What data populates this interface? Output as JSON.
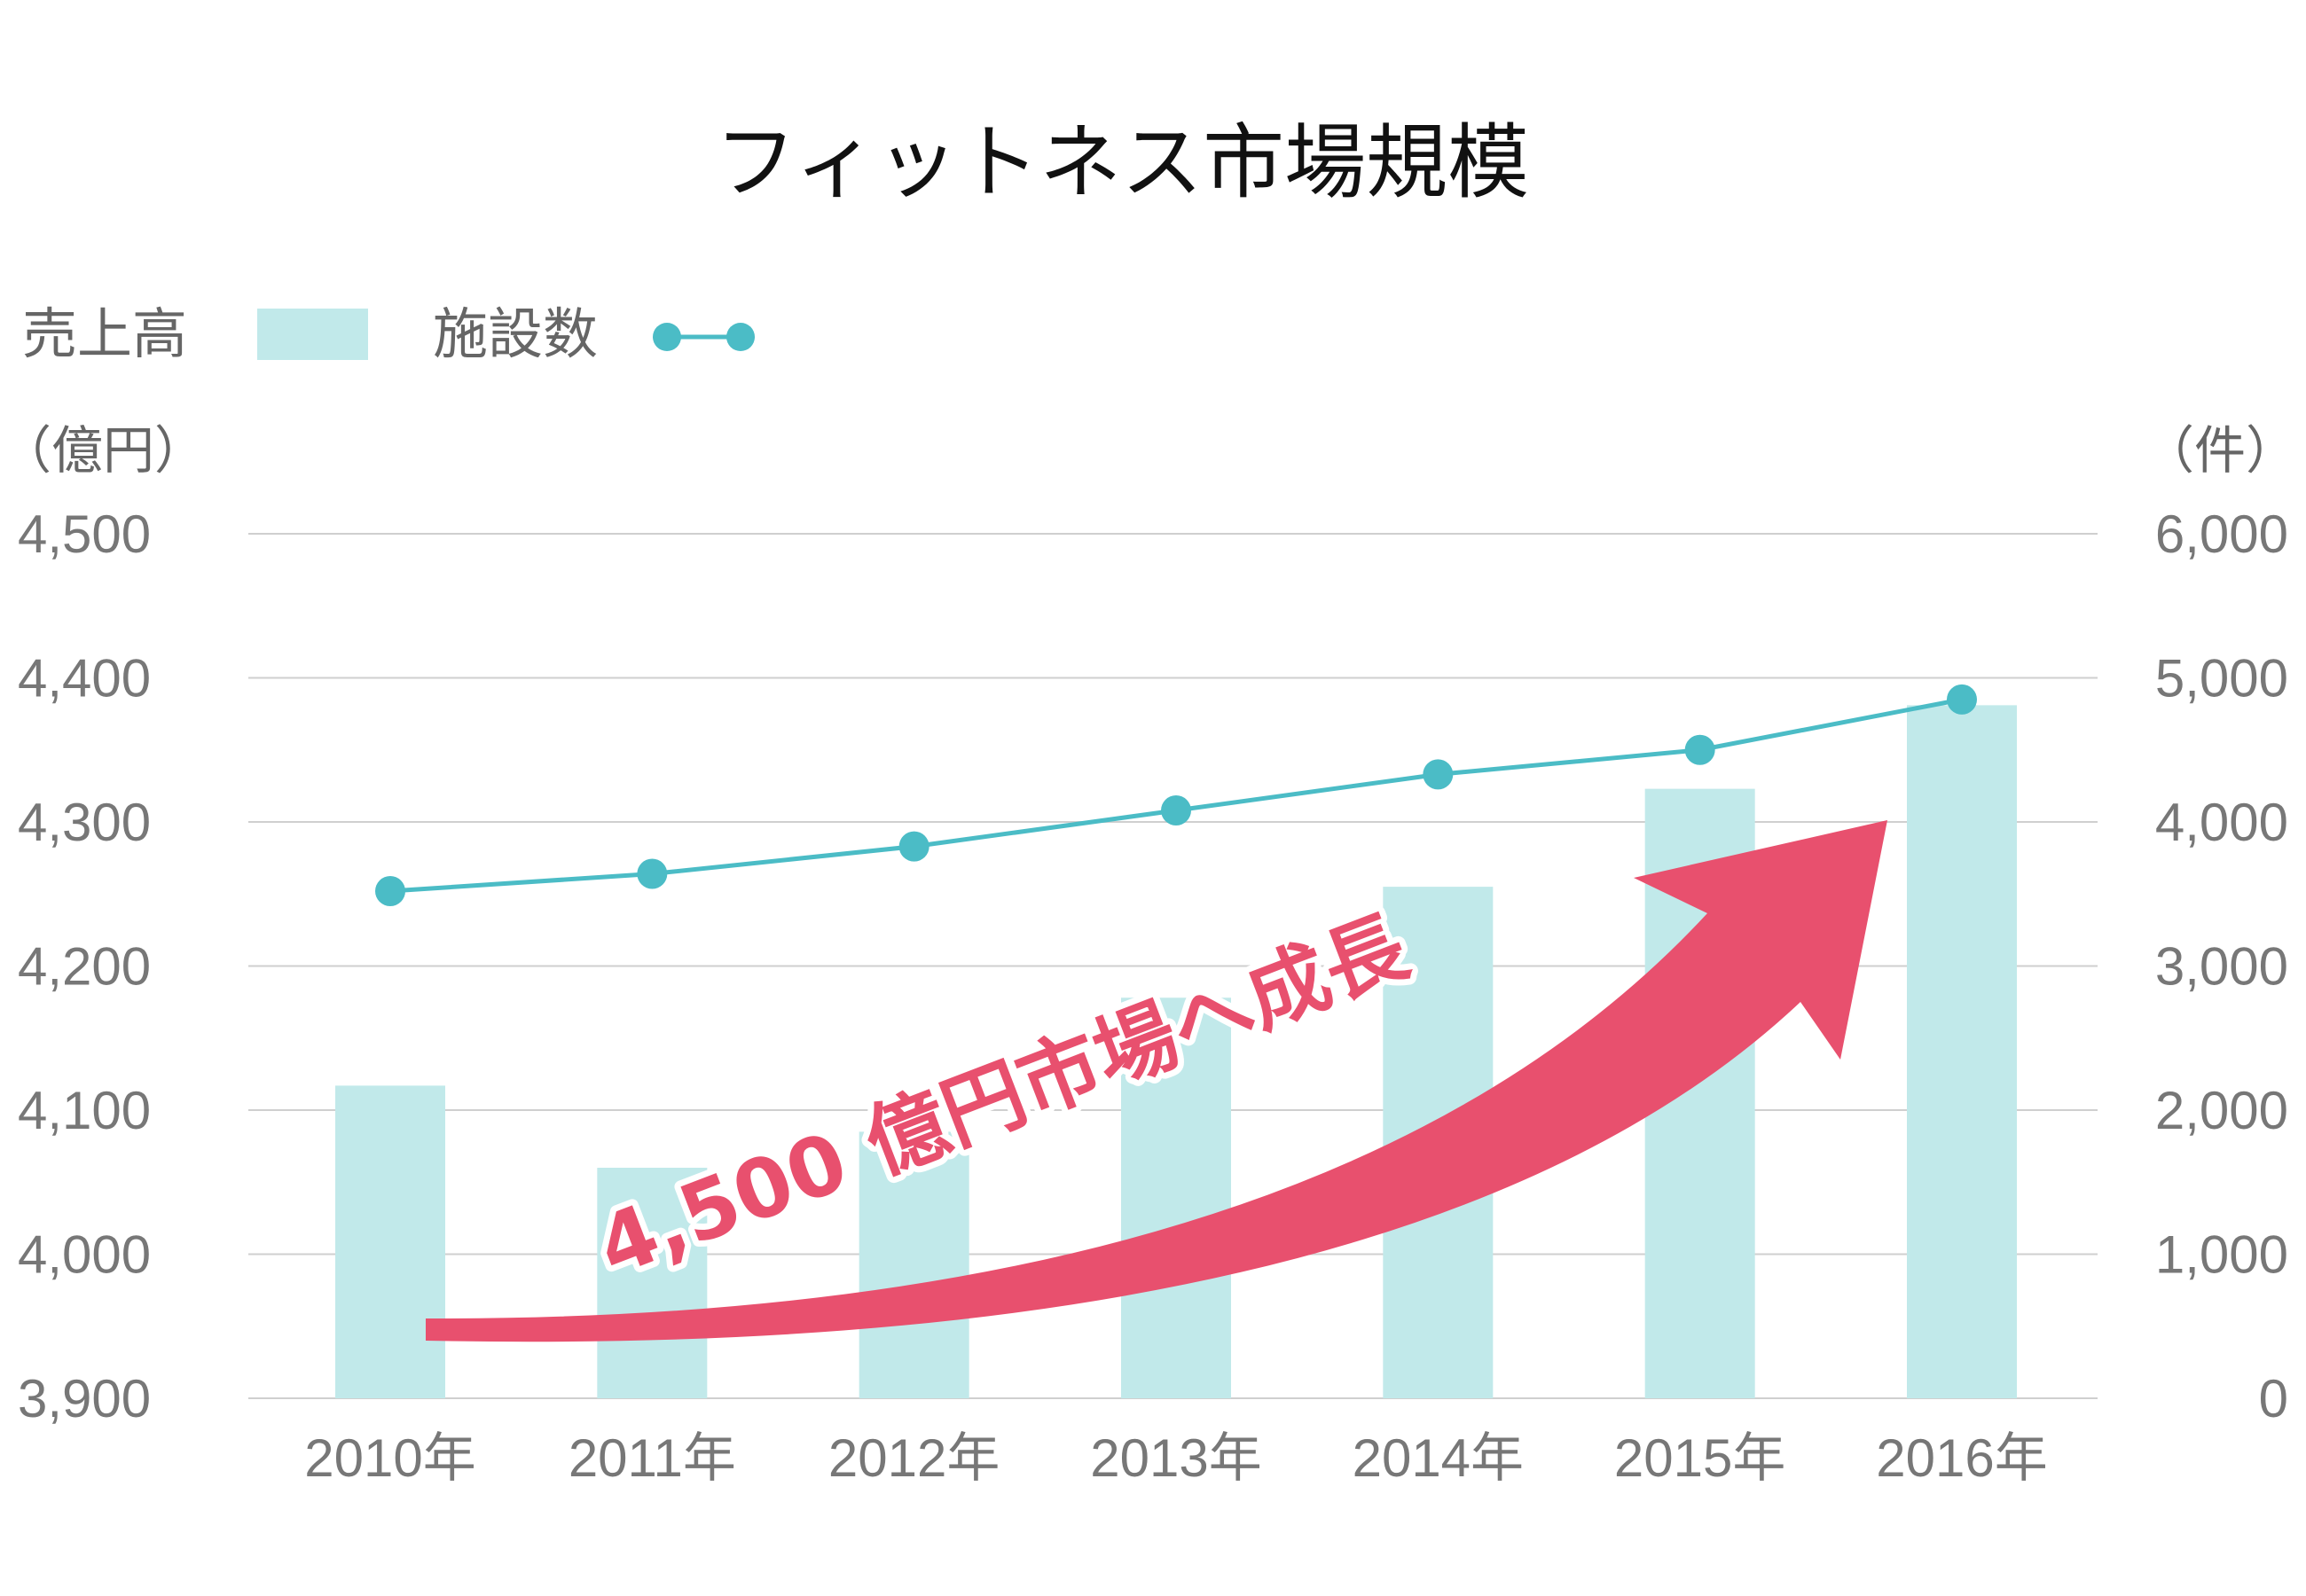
{
  "colors": {
    "bar": "#c1e9ea",
    "line": "#4bbcc6",
    "grid": "#cfcfcf",
    "arrow": "#e8506e",
    "text": "#777777"
  },
  "chart_data": {
    "type": "bar",
    "title": "フィットネス市場規模",
    "categories": [
      "2010年",
      "2011年",
      "2012年",
      "2013年",
      "2014年",
      "2015年",
      "2016年"
    ],
    "legend": {
      "placement": "top-left",
      "bar_label": "売上高",
      "line_label": "施設数"
    },
    "left_axis": {
      "unit": "（億円）",
      "ylim": [
        3900,
        4500
      ],
      "ticks": [
        3900,
        4000,
        4100,
        4200,
        4300,
        4400,
        4500
      ],
      "tick_labels": [
        "3,900",
        "4,000",
        "4,100",
        "4,200",
        "4,300",
        "4,400",
        "4,500"
      ]
    },
    "right_axis": {
      "unit": "（件）",
      "ylim": [
        0,
        6000
      ],
      "ticks": [
        0,
        1000,
        2000,
        3000,
        4000,
        5000,
        6000
      ],
      "tick_labels": [
        "0",
        "1,000",
        "2,000",
        "3,000",
        "4,000",
        "5,000",
        "6,000"
      ]
    },
    "series": [
      {
        "name": "売上高",
        "type": "bar",
        "axis": "left",
        "values": [
          4117,
          4060,
          4085,
          4178,
          4255,
          4323,
          4381
        ]
      },
      {
        "name": "施設数",
        "type": "line",
        "axis": "right",
        "values": [
          3520,
          3640,
          3830,
          4080,
          4330,
          4500,
          4850
        ]
      }
    ],
    "grid": true,
    "annotation": {
      "text": "4,500 億円市場へ成長"
    }
  }
}
